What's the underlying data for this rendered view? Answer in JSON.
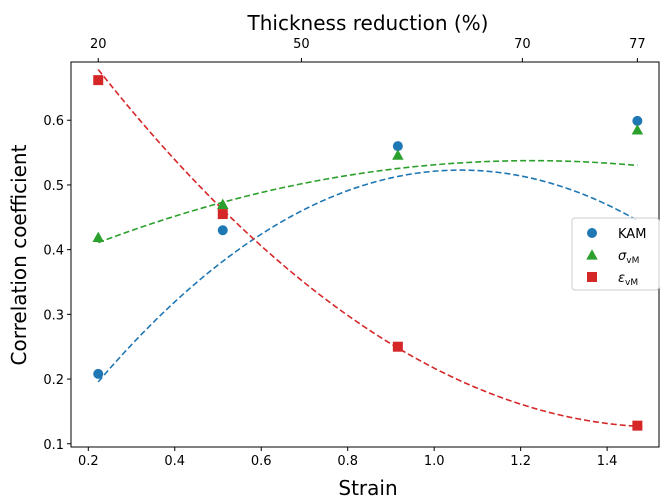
{
  "chart_data": {
    "type": "scatter",
    "xlabel": "Strain",
    "ylabel": "Correlation coefficient",
    "top_xlabel": "Thickness reduction (%)",
    "xlim": [
      0.16,
      1.52
    ],
    "ylim": [
      0.095,
      0.69
    ],
    "x_ticks": [
      {
        "value": 0.2,
        "label": "0.2"
      },
      {
        "value": 0.4,
        "label": "0.4"
      },
      {
        "value": 0.6,
        "label": "0.6"
      },
      {
        "value": 0.8,
        "label": "0.8"
      },
      {
        "value": 1.0,
        "label": "1.0"
      },
      {
        "value": 1.2,
        "label": "1.2"
      },
      {
        "value": 1.4,
        "label": "1.4"
      }
    ],
    "y_ticks": [
      {
        "value": 0.1,
        "label": "0.1"
      },
      {
        "value": 0.2,
        "label": "0.2"
      },
      {
        "value": 0.3,
        "label": "0.3"
      },
      {
        "value": 0.4,
        "label": "0.4"
      },
      {
        "value": 0.5,
        "label": "0.5"
      },
      {
        "value": 0.6,
        "label": "0.6"
      }
    ],
    "top_ticks": [
      {
        "strain": 0.223,
        "label": "20"
      },
      {
        "strain": 0.693,
        "label": "50"
      },
      {
        "strain": 1.204,
        "label": "70"
      },
      {
        "strain": 1.47,
        "label": "77"
      }
    ],
    "legend_position": "center-right",
    "series": [
      {
        "name": "KAM",
        "sub": "",
        "marker": "circle",
        "color": "#1f77b4",
        "x": [
          0.223,
          0.511,
          0.916,
          1.47
        ],
        "y": [
          0.208,
          0.43,
          0.56,
          0.599
        ],
        "fit": [
          -0.0016,
          0.9886,
          -0.4658
        ]
      },
      {
        "name": "σ",
        "sub": "vM",
        "marker": "triangle",
        "color": "#2ca02c",
        "x": [
          0.223,
          0.511,
          0.916,
          1.47
        ],
        "y": [
          0.419,
          0.47,
          0.546,
          0.585
        ],
        "fit": [
          0.3483,
          0.3087,
          -0.1259
        ]
      },
      {
        "name": "ε",
        "sub": "vM",
        "marker": "square",
        "color": "#d62728",
        "x": [
          0.223,
          0.511,
          0.916,
          1.47
        ],
        "y": [
          0.662,
          0.455,
          0.25,
          0.128
        ],
        "fit": [
          0.8829,
          -0.989,
          0.323
        ]
      }
    ]
  }
}
